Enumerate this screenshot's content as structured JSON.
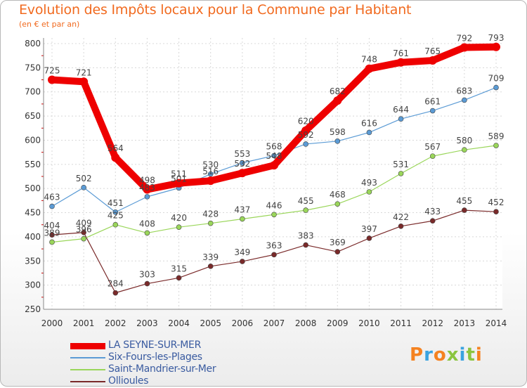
{
  "header": {
    "title": "Evolution des Impôts locaux pour la Commune par Habitant",
    "subtitle": "(en € et par an)"
  },
  "logo": {
    "letters": [
      "P",
      "r",
      "o",
      "x",
      "i",
      "t",
      "i"
    ],
    "colors": [
      "#f58220",
      "#3aa3e0",
      "#f58220",
      "#8bc53f",
      "#3aa3e0",
      "#8bc53f",
      "#f58220"
    ]
  },
  "chart_data": {
    "type": "line",
    "title": "Evolution des Impôts locaux pour la Commune par Habitant",
    "subtitle": "(en € et par an)",
    "x": [
      "2000",
      "2001",
      "2002",
      "2003",
      "2004",
      "2005",
      "2006",
      "2007",
      "2008",
      "2009",
      "2010",
      "2011",
      "2012",
      "2013",
      "2014"
    ],
    "ylim": [
      250,
      800
    ],
    "yticks": [
      250,
      300,
      350,
      400,
      450,
      500,
      550,
      600,
      650,
      700,
      750,
      800
    ],
    "grid": true,
    "legend_position": "bottom-left",
    "series": [
      {
        "name": "LA SEYNE-SUR-MER",
        "color": "#ee0000",
        "values": [
          725,
          721,
          564,
          498,
          511,
          516,
          532,
          548,
          620,
          682,
          748,
          761,
          765,
          792,
          793
        ]
      },
      {
        "name": "Six-Fours-les-Plages",
        "color": "#5b9bd5",
        "values": [
          463,
          502,
          451,
          483,
          501,
          530,
          553,
          568,
          592,
          598,
          616,
          644,
          661,
          683,
          709
        ]
      },
      {
        "name": "Saint-Mandrier-sur-Mer",
        "color": "#9ad65a",
        "values": [
          389,
          396,
          425,
          408,
          420,
          428,
          437,
          446,
          455,
          468,
          493,
          531,
          567,
          580,
          589
        ]
      },
      {
        "name": "Ollioules",
        "color": "#7a2a2a",
        "values": [
          404,
          409,
          284,
          303,
          315,
          339,
          349,
          363,
          383,
          369,
          397,
          422,
          433,
          455,
          452
        ]
      }
    ]
  }
}
